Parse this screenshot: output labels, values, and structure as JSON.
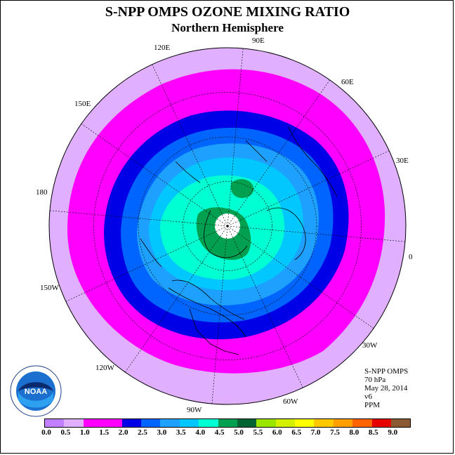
{
  "title": "S-NPP OMPS OZONE MIXING RATIO",
  "subtitle": "Northern Hemisphere",
  "longitude_labels": [
    {
      "id": "90E",
      "text": "90E"
    },
    {
      "id": "60E",
      "text": "60E"
    },
    {
      "id": "30E",
      "text": "30E"
    },
    {
      "id": "0",
      "text": "0"
    },
    {
      "id": "30W",
      "text": "30W"
    },
    {
      "id": "60W",
      "text": "60W"
    },
    {
      "id": "90W",
      "text": "90W"
    },
    {
      "id": "120W",
      "text": "120W"
    },
    {
      "id": "150W",
      "text": "150W"
    },
    {
      "id": "180",
      "text": "180"
    },
    {
      "id": "150E",
      "text": "150E"
    },
    {
      "id": "120E",
      "text": "120E"
    }
  ],
  "info": {
    "instrument": "S-NPP OMPS",
    "level": "70 hPa",
    "date": "May 28, 2014",
    "version": "v6",
    "units": "PPM"
  },
  "logo_text": "NOAA",
  "colorbar": {
    "ticks": [
      "0.0",
      "0.5",
      "1.0",
      "1.5",
      "2.0",
      "2.5",
      "3.0",
      "3.5",
      "4.0",
      "4.5",
      "5.0",
      "5.5",
      "6.0",
      "6.5",
      "7.0",
      "7.5",
      "8.0",
      "8.5",
      "9.0"
    ],
    "colors": [
      "#c080ff",
      "#e0b0ff",
      "#ff00ff",
      "#ff00ff",
      "#0000e6",
      "#0064ff",
      "#1ea0ff",
      "#00c8ff",
      "#00ffd2",
      "#00a050",
      "#006432",
      "#9be600",
      "#d2f000",
      "#ffff00",
      "#ffc800",
      "#ffa000",
      "#ff6400",
      "#e60000",
      "#8c5a32"
    ]
  }
}
